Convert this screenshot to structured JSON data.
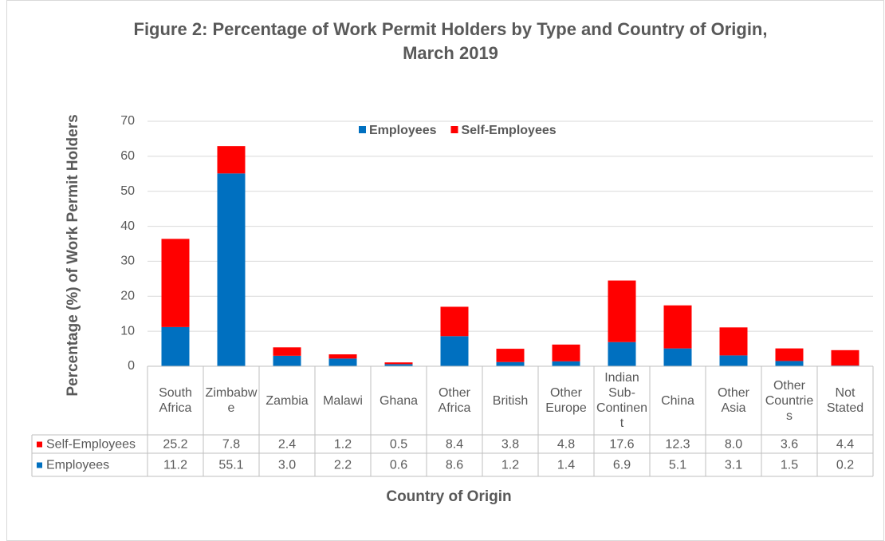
{
  "chart_data": {
    "type": "stacked_bar",
    "title": "Figure 2: Percentage of Work Permit Holders by Type and Country of Origin, March 2019",
    "x_label": "Country of Origin",
    "y_label": "Percentage (%) of Work Permit Holders",
    "categories": [
      "South Africa",
      "Zimbabwe",
      "Zambia",
      "Malawi",
      "Ghana",
      "Other Africa",
      "British",
      "Other Europe",
      "Indian Sub-Continent",
      "China",
      "Other Asia",
      "Other Countries",
      "Not Stated"
    ],
    "series": [
      {
        "name": "Employees",
        "color": "#0070c0",
        "values": [
          11.2,
          55.1,
          3.0,
          2.2,
          0.6,
          8.6,
          1.2,
          1.4,
          6.9,
          5.1,
          3.1,
          1.5,
          0.2
        ],
        "value_labels": [
          "11.2",
          "55.1",
          "3.0",
          "2.2",
          "0.6",
          "8.6",
          "1.2",
          "1.4",
          "6.9",
          "5.1",
          "3.1",
          "1.5",
          "0.2"
        ]
      },
      {
        "name": "Self-Employees",
        "color": "#ff0000",
        "values": [
          25.2,
          7.8,
          2.4,
          1.2,
          0.5,
          8.4,
          3.8,
          4.8,
          17.6,
          12.3,
          8.0,
          3.6,
          4.4
        ],
        "value_labels": [
          "25.2",
          "7.8",
          "2.4",
          "1.2",
          "0.5",
          "8.4",
          "3.8",
          "4.8",
          "17.6",
          "12.3",
          "8.0",
          "3.6",
          "4.4"
        ]
      }
    ],
    "ylim": [
      0,
      70
    ],
    "yticks": [
      0,
      10,
      20,
      30,
      40,
      50,
      60,
      70
    ],
    "grid": true,
    "legend": "top"
  }
}
